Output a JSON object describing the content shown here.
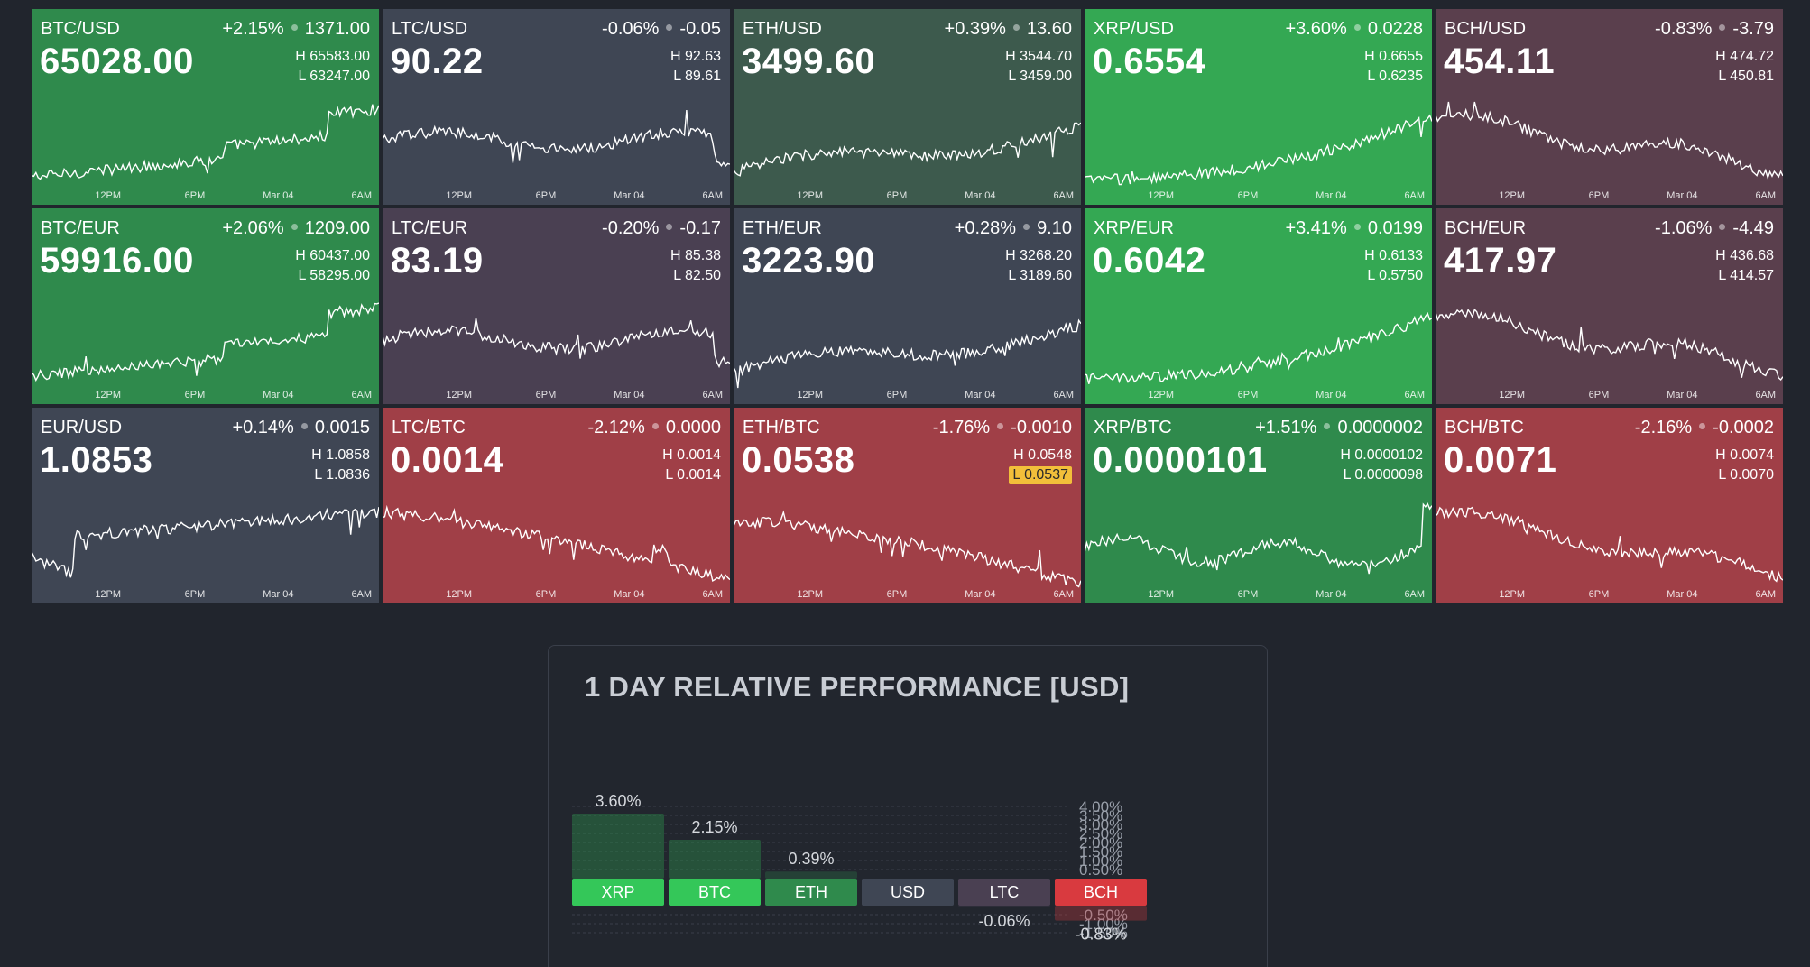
{
  "colors": {
    "strong_up": "#34a853",
    "up": "#2f8a4c",
    "flat_up": "#3d5a4d",
    "flat": "#3f4654",
    "flat_down": "#4a4052",
    "down": "#5a3f4d",
    "strong_down": "#a03f47",
    "highlight": "#f2bf3a"
  },
  "time_ticks": [
    "12PM",
    "6PM",
    "Mar 04",
    "6AM"
  ],
  "tiles": [
    {
      "pair": "BTC/USD",
      "change_pct": "+2.15%",
      "change_abs": "1371.00",
      "price": "65028.00",
      "high": "H 65583.00",
      "low": "L 63247.00",
      "color": "up",
      "trend": "up1"
    },
    {
      "pair": "LTC/USD",
      "change_pct": "-0.06%",
      "change_abs": "-0.05",
      "price": "90.22",
      "high": "H 92.63",
      "low": "L 89.61",
      "color": "flat",
      "trend": "flatA"
    },
    {
      "pair": "ETH/USD",
      "change_pct": "+0.39%",
      "change_abs": "13.60",
      "price": "3499.60",
      "high": "H 3544.70",
      "low": "L 3459.00",
      "color": "flat_up",
      "trend": "up2"
    },
    {
      "pair": "XRP/USD",
      "change_pct": "+3.60%",
      "change_abs": "0.0228",
      "price": "0.6554",
      "high": "H 0.6655",
      "low": "L 0.6235",
      "color": "strong_up",
      "trend": "up3"
    },
    {
      "pair": "BCH/USD",
      "change_pct": "-0.83%",
      "change_abs": "-3.79",
      "price": "454.11",
      "high": "H 474.72",
      "low": "L 450.81",
      "color": "down",
      "trend": "down1"
    },
    {
      "pair": "BTC/EUR",
      "change_pct": "+2.06%",
      "change_abs": "1209.00",
      "price": "59916.00",
      "high": "H 60437.00",
      "low": "L 58295.00",
      "color": "up",
      "trend": "up1"
    },
    {
      "pair": "LTC/EUR",
      "change_pct": "-0.20%",
      "change_abs": "-0.17",
      "price": "83.19",
      "high": "H 85.38",
      "low": "L 82.50",
      "color": "flat_down",
      "trend": "flatA"
    },
    {
      "pair": "ETH/EUR",
      "change_pct": "+0.28%",
      "change_abs": "9.10",
      "price": "3223.90",
      "high": "H 3268.20",
      "low": "L 3189.60",
      "color": "flat",
      "trend": "up2"
    },
    {
      "pair": "XRP/EUR",
      "change_pct": "+3.41%",
      "change_abs": "0.0199",
      "price": "0.6042",
      "high": "H 0.6133",
      "low": "L 0.5750",
      "color": "strong_up",
      "trend": "up3"
    },
    {
      "pair": "BCH/EUR",
      "change_pct": "-1.06%",
      "change_abs": "-4.49",
      "price": "417.97",
      "high": "H 436.68",
      "low": "L 414.57",
      "color": "down",
      "trend": "down1"
    },
    {
      "pair": "EUR/USD",
      "change_pct": "+0.14%",
      "change_abs": "0.0015",
      "price": "1.0853",
      "high": "H 1.0858",
      "low": "L 1.0836",
      "color": "flat",
      "trend": "eur"
    },
    {
      "pair": "LTC/BTC",
      "change_pct": "-2.12%",
      "change_abs": "0.0000",
      "price": "0.0014",
      "high": "H 0.0014",
      "low": "L 0.0014",
      "color": "strong_down",
      "trend": "down2"
    },
    {
      "pair": "ETH/BTC",
      "change_pct": "-1.76%",
      "change_abs": "-0.0010",
      "price": "0.0538",
      "high": "H 0.0548",
      "low": "L 0.0537",
      "color": "strong_down",
      "trend": "down3",
      "low_highlight": true
    },
    {
      "pair": "XRP/BTC",
      "change_pct": "+1.51%",
      "change_abs": "0.0000002",
      "price": "0.0000101",
      "high": "H 0.0000102",
      "low": "L 0.0000098",
      "color": "up",
      "trend": "up4"
    },
    {
      "pair": "BCH/BTC",
      "change_pct": "-2.16%",
      "change_abs": "-0.0002",
      "price": "0.0071",
      "high": "H 0.0074",
      "low": "L 0.0070",
      "color": "strong_down",
      "trend": "down4"
    }
  ],
  "performance": {
    "title": "1 DAY RELATIVE PERFORMANCE  [USD]",
    "chart_data": {
      "type": "bar",
      "categories": [
        "XRP",
        "BTC",
        "ETH",
        "USD",
        "LTC",
        "BCH"
      ],
      "values": [
        3.6,
        2.15,
        0.39,
        0,
        -0.06,
        -0.83
      ],
      "value_labels": [
        "3.60%",
        "2.15%",
        "0.39%",
        "",
        "-0.06%",
        "-0.83%"
      ],
      "category_colors": [
        "#34c759",
        "#34c759",
        "#2f8a4c",
        "#3f4654",
        "#4a4052",
        "#d93a3f"
      ],
      "y_ticks_pos": [
        "4.00%",
        "3.50%",
        "3.00%",
        "2.50%",
        "2.00%",
        "1.50%",
        "1.00%",
        "0.50%"
      ],
      "y_tick_values_pos": [
        4.0,
        3.5,
        3.0,
        2.5,
        2.0,
        1.5,
        1.0,
        0.5
      ],
      "y_ticks_neg": [
        "-0.50%",
        "-1.00%",
        "-1.50%"
      ],
      "y_tick_values_neg": [
        -0.5,
        -1.0,
        -1.5
      ],
      "title": "1 DAY RELATIVE PERFORMANCE  [USD]",
      "xlabel": "",
      "ylabel": ""
    }
  }
}
